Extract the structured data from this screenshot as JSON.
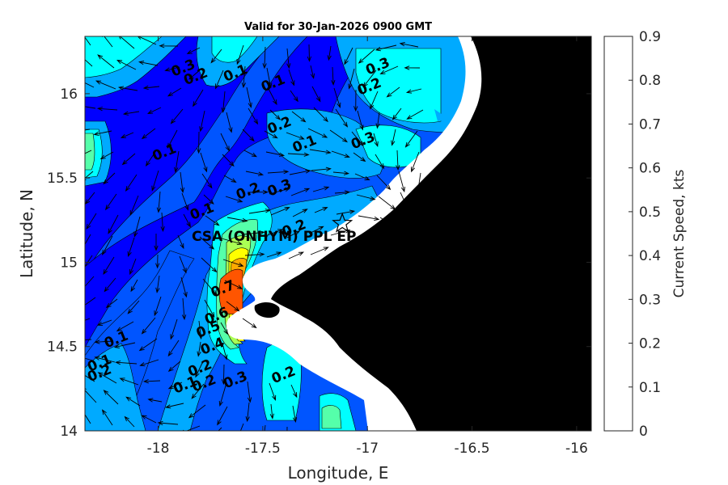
{
  "chart_data": {
    "type": "contour",
    "title": "Valid for 30-Jan-2026 0900 GMT",
    "xlabel": "Longitude, E",
    "ylabel": "Latitude, N",
    "xlim": [
      -18.35,
      -15.93
    ],
    "ylim": [
      14.0,
      16.34
    ],
    "xticks": [
      -18,
      -17.5,
      -17,
      -16.5,
      -16
    ],
    "xtick_labels": [
      "-18",
      "-17.5",
      "-17",
      "-16.5",
      "-16"
    ],
    "yticks": [
      14,
      14.5,
      15,
      15.5,
      16
    ],
    "ytick_labels": [
      "14",
      "14.5",
      "15",
      "15.5",
      "16"
    ],
    "colorbar": {
      "label": "Current Speed, kts",
      "range": [
        0,
        0.9
      ],
      "ticks": [
        "0",
        "0.1",
        "0.2",
        "0.3",
        "0.4",
        "0.5",
        "0.6",
        "0.7",
        "0.8",
        "0.9"
      ],
      "levels": [
        0,
        0.1,
        0.2,
        0.3,
        0.4,
        0.5,
        0.6,
        0.7,
        0.8,
        0.9
      ],
      "colors": [
        "#0000ff",
        "#0055ff",
        "#00aaff",
        "#00ffff",
        "#55ffaa",
        "#aaff55",
        "#ffff00",
        "#ffaa00",
        "#ff5500"
      ]
    },
    "land_color": "#000000",
    "no_data_color": "#ffffff",
    "site": {
      "label": "CSA (ONHYM) PPL EP",
      "lon": -17.12,
      "lat": 15.23
    },
    "contour_labels": [
      {
        "text": "0.3",
        "lon": -17.88,
        "lat": 16.15
      },
      {
        "text": "0.2",
        "lon": -17.82,
        "lat": 16.1
      },
      {
        "text": "0.1",
        "lon": -17.63,
        "lat": 16.12
      },
      {
        "text": "0.1",
        "lon": -17.45,
        "lat": 16.06
      },
      {
        "text": "0.3",
        "lon": -16.95,
        "lat": 16.16
      },
      {
        "text": "0.2",
        "lon": -16.99,
        "lat": 16.04
      },
      {
        "text": "0.2",
        "lon": -17.42,
        "lat": 15.81
      },
      {
        "text": "0.1",
        "lon": -17.3,
        "lat": 15.7
      },
      {
        "text": "0.3",
        "lon": -17.02,
        "lat": 15.72
      },
      {
        "text": "0.1",
        "lon": -17.97,
        "lat": 15.65
      },
      {
        "text": "0.2",
        "lon": -17.57,
        "lat": 15.42
      },
      {
        "text": "0.3",
        "lon": -17.42,
        "lat": 15.44
      },
      {
        "text": "0.1",
        "lon": -17.79,
        "lat": 15.3
      },
      {
        "text": "0.2",
        "lon": -17.35,
        "lat": 15.2
      },
      {
        "text": "0.7",
        "lon": -17.69,
        "lat": 14.84
      },
      {
        "text": "0.6",
        "lon": -17.72,
        "lat": 14.68
      },
      {
        "text": "0.5",
        "lon": -17.76,
        "lat": 14.6
      },
      {
        "text": "0.4",
        "lon": -17.74,
        "lat": 14.5
      },
      {
        "text": "0.1",
        "lon": -18.2,
        "lat": 14.54
      },
      {
        "text": "0.1",
        "lon": -18.28,
        "lat": 14.4
      },
      {
        "text": "0.2",
        "lon": -18.28,
        "lat": 14.34
      },
      {
        "text": "0.2",
        "lon": -17.8,
        "lat": 14.37
      },
      {
        "text": "0.1",
        "lon": -17.87,
        "lat": 14.27
      },
      {
        "text": "0.2",
        "lon": -17.78,
        "lat": 14.28
      },
      {
        "text": "0.3",
        "lon": -17.63,
        "lat": 14.3
      },
      {
        "text": "0.2",
        "lon": -17.4,
        "lat": 14.33
      }
    ]
  }
}
